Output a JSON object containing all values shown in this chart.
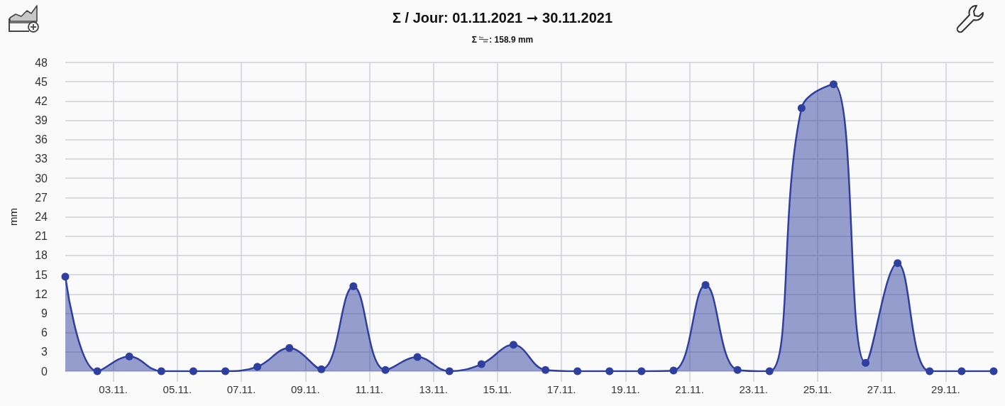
{
  "chart_data": {
    "type": "area",
    "title": "Σ / Jour: 01.11.2021 ➞ 30.11.2021",
    "subtitle": "Σ : 158.9 mm",
    "ylabel": "mm",
    "x": [
      "2021-11-01T12:00",
      "2021-11-02T12:00",
      "2021-11-03T12:00",
      "2021-11-04T12:00",
      "2021-11-05T12:00",
      "2021-11-06T12:00",
      "2021-11-07T12:00",
      "2021-11-08T12:00",
      "2021-11-09T12:00",
      "2021-11-10T12:00",
      "2021-11-11T12:00",
      "2021-11-12T12:00",
      "2021-11-13T12:00",
      "2021-11-14T12:00",
      "2021-11-15T12:00",
      "2021-11-16T12:00",
      "2021-11-17T12:00",
      "2021-11-18T12:00",
      "2021-11-19T12:00",
      "2021-11-20T12:00",
      "2021-11-21T12:00",
      "2021-11-22T12:00",
      "2021-11-23T12:00",
      "2021-11-24T12:00",
      "2021-11-25T12:00",
      "2021-11-26T12:00",
      "2021-11-27T12:00",
      "2021-11-28T12:00",
      "2021-11-29T12:00",
      "2021-11-30T12:00"
    ],
    "values": [
      14.7,
      0,
      2.3,
      0,
      0,
      0,
      0.7,
      3.6,
      0.3,
      13.2,
      0.2,
      2.2,
      0,
      1.1,
      4.1,
      0.2,
      0,
      0,
      0,
      0.1,
      13.4,
      0.2,
      0,
      40.9,
      44.6,
      1.3,
      16.8,
      0,
      0,
      0
    ],
    "color": "#2f3f9f",
    "marker": "circle",
    "grid": true,
    "xlim": [
      "2021-11-01T12:00",
      "2021-11-30T12:00"
    ],
    "xticks": [
      {
        "value": "2021-11-03",
        "label": "03.11."
      },
      {
        "value": "2021-11-05",
        "label": "05.11."
      },
      {
        "value": "2021-11-07",
        "label": "07.11."
      },
      {
        "value": "2021-11-09",
        "label": "09.11."
      },
      {
        "value": "2021-11-11",
        "label": "11.11."
      },
      {
        "value": "2021-11-13",
        "label": "13.11."
      },
      {
        "value": "2021-11-15",
        "label": "15.11."
      },
      {
        "value": "2021-11-17",
        "label": "17.11."
      },
      {
        "value": "2021-11-19",
        "label": "19.11."
      },
      {
        "value": "2021-11-21",
        "label": "21.11."
      },
      {
        "value": "2021-11-23",
        "label": "23.11."
      },
      {
        "value": "2021-11-25",
        "label": "25.11."
      },
      {
        "value": "2021-11-27",
        "label": "27.11."
      },
      {
        "value": "2021-11-29",
        "label": "29.11."
      }
    ],
    "ylim": [
      0,
      48
    ],
    "yticks": [
      0,
      3,
      6,
      9,
      12,
      15,
      18,
      21,
      24,
      27,
      30,
      33,
      36,
      39,
      42,
      45,
      48
    ]
  }
}
